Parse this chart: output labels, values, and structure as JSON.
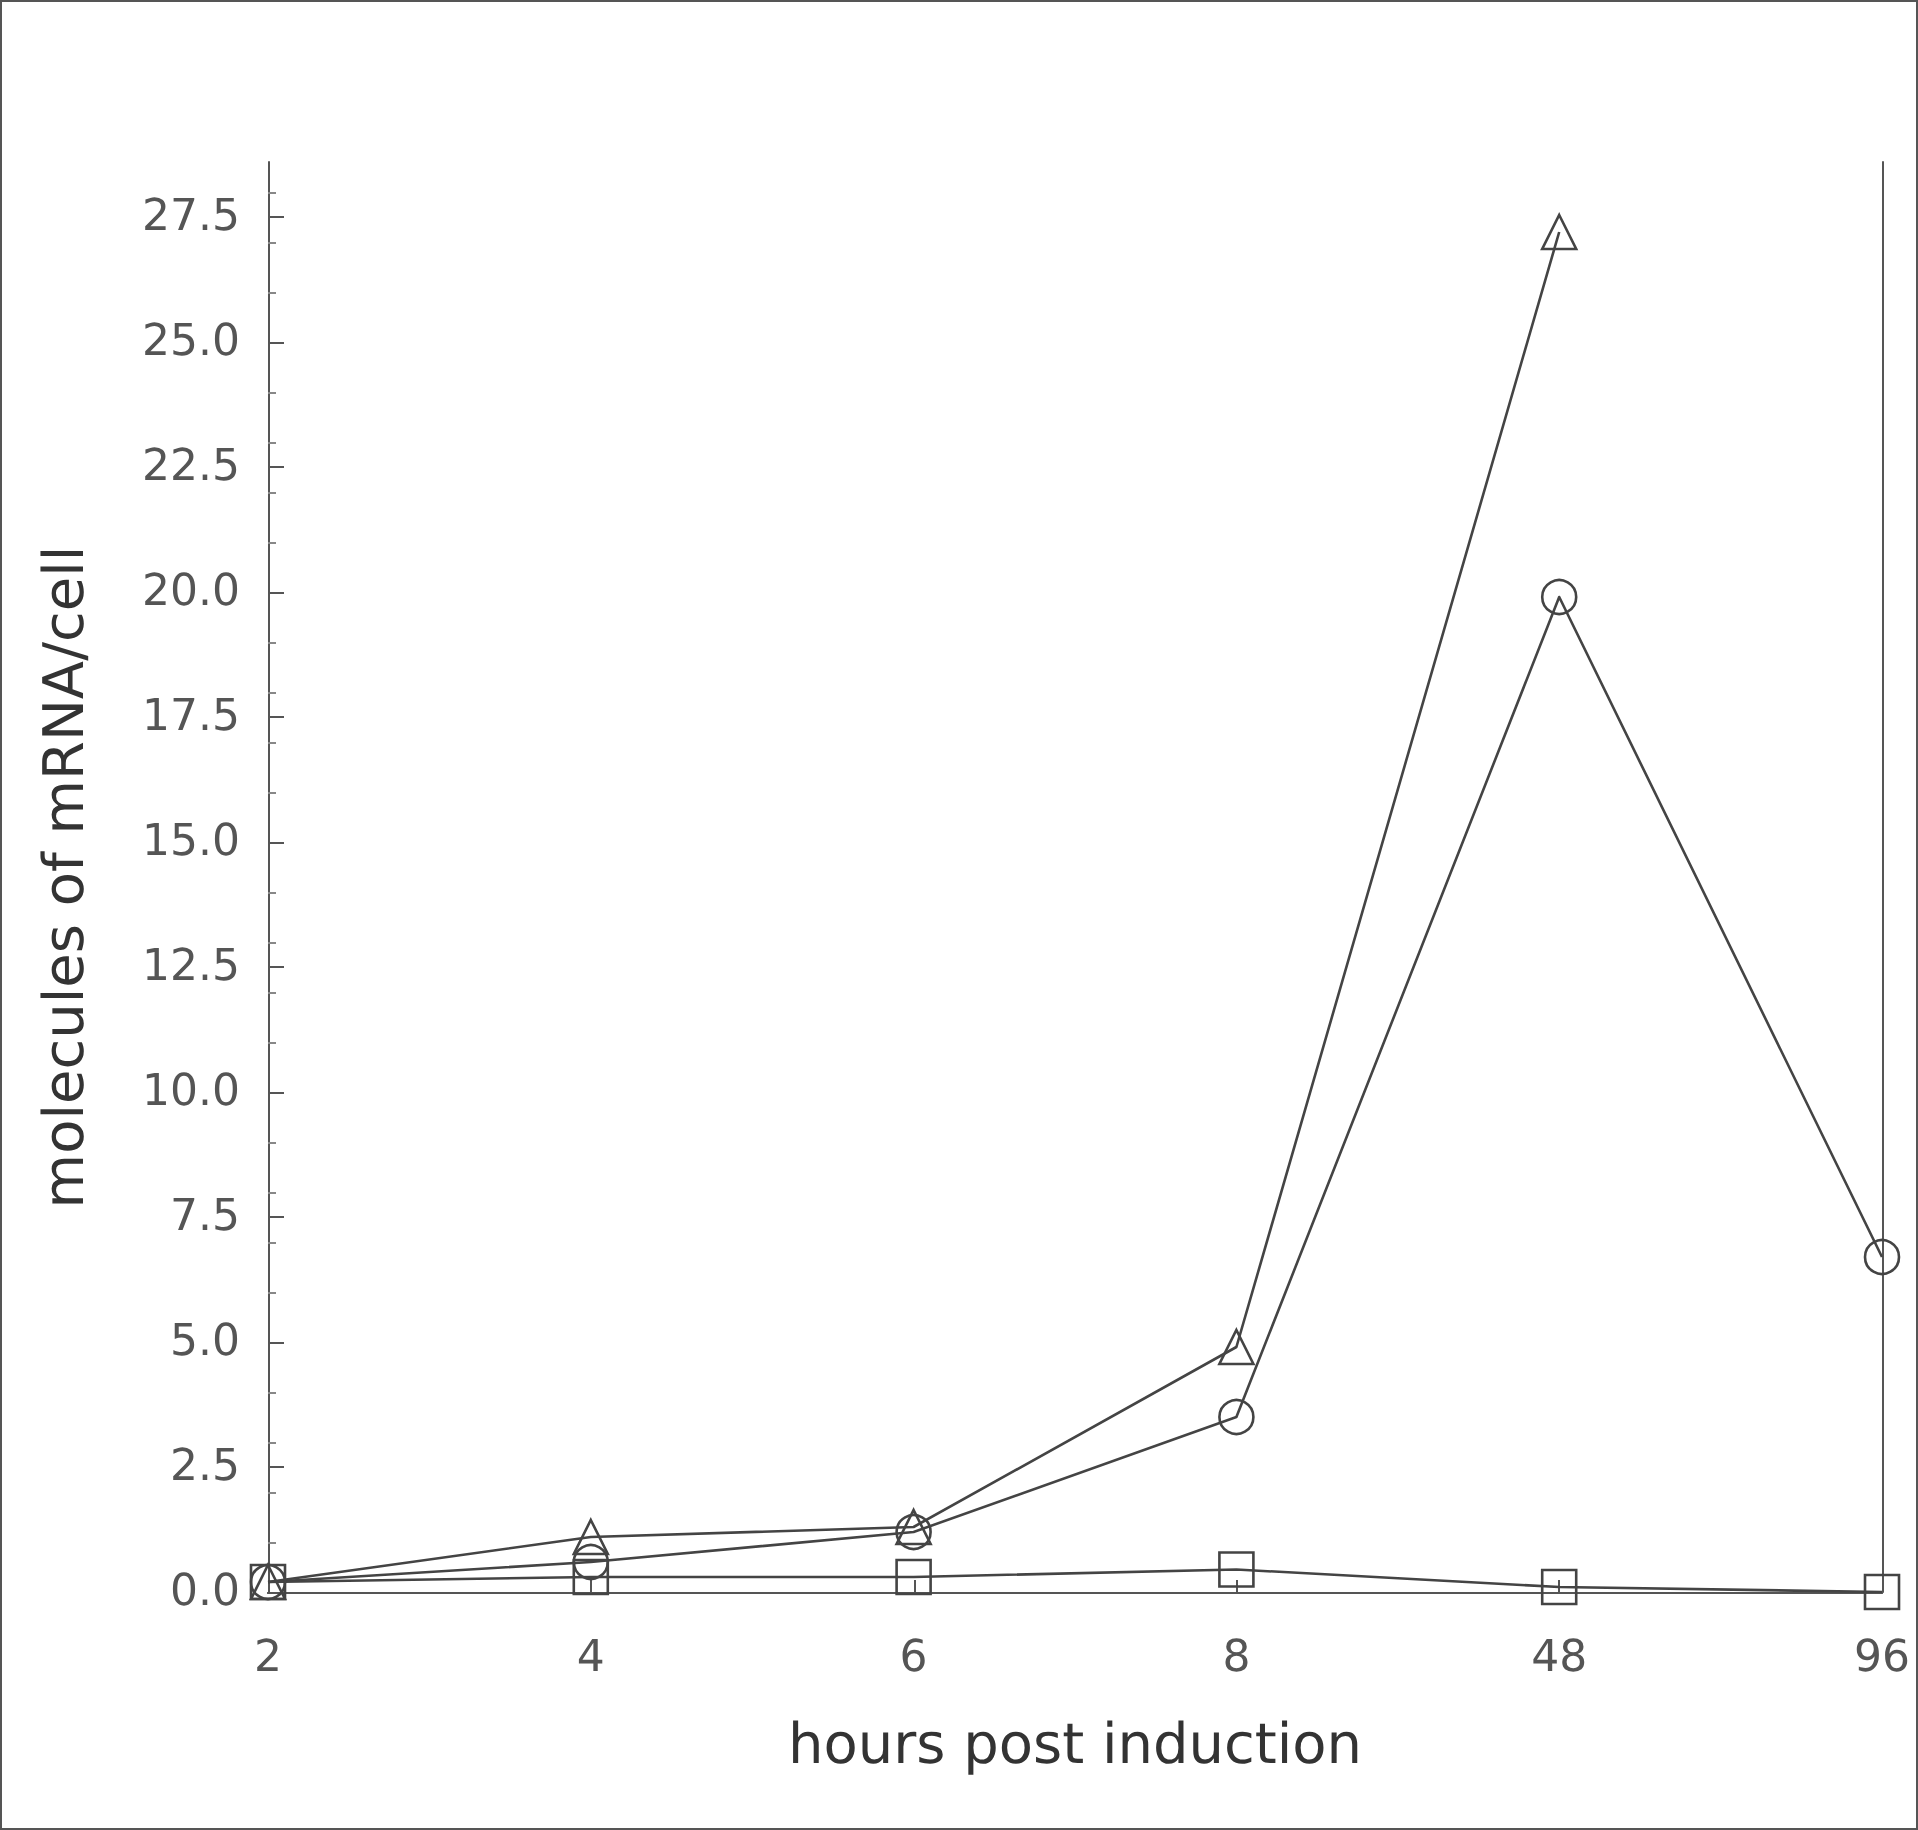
{
  "chart_data": {
    "type": "line",
    "xlabel": "hours post induction",
    "ylabel": "molecules of mRNA/cell",
    "categories": [
      "2",
      "4",
      "6",
      "8",
      "48",
      "96"
    ],
    "series": [
      {
        "color": "#444444",
        "marker": "circle",
        "values": [
          0.2,
          0.6,
          1.2,
          3.5,
          19.9,
          6.7
        ]
      },
      {
        "color": "#444444",
        "marker": "triangle",
        "values": [
          0.2,
          1.1,
          1.3,
          4.9,
          27.2,
          null
        ]
      },
      {
        "color": "#444444",
        "marker": "square",
        "values": [
          0.2,
          0.3,
          0.3,
          0.45,
          0.1,
          0.0
        ]
      }
    ],
    "ylim": [
      0,
      28.6
    ],
    "yticks": [
      {
        "value": 0,
        "label": "0.0"
      },
      {
        "value": 2.5,
        "label": "2.5"
      },
      {
        "value": 5,
        "label": "5.0"
      },
      {
        "value": 7.5,
        "label": "7.5"
      },
      {
        "value": 10,
        "label": "10.0"
      },
      {
        "value": 12.5,
        "label": "12.5"
      },
      {
        "value": 15,
        "label": "15.0"
      },
      {
        "value": 17.5,
        "label": "17.5"
      },
      {
        "value": 20,
        "label": "20.0"
      },
      {
        "value": 22.5,
        "label": "22.5"
      },
      {
        "value": 25,
        "label": "25.0"
      },
      {
        "value": 27.5,
        "label": "27.5"
      }
    ],
    "grid": false
  }
}
